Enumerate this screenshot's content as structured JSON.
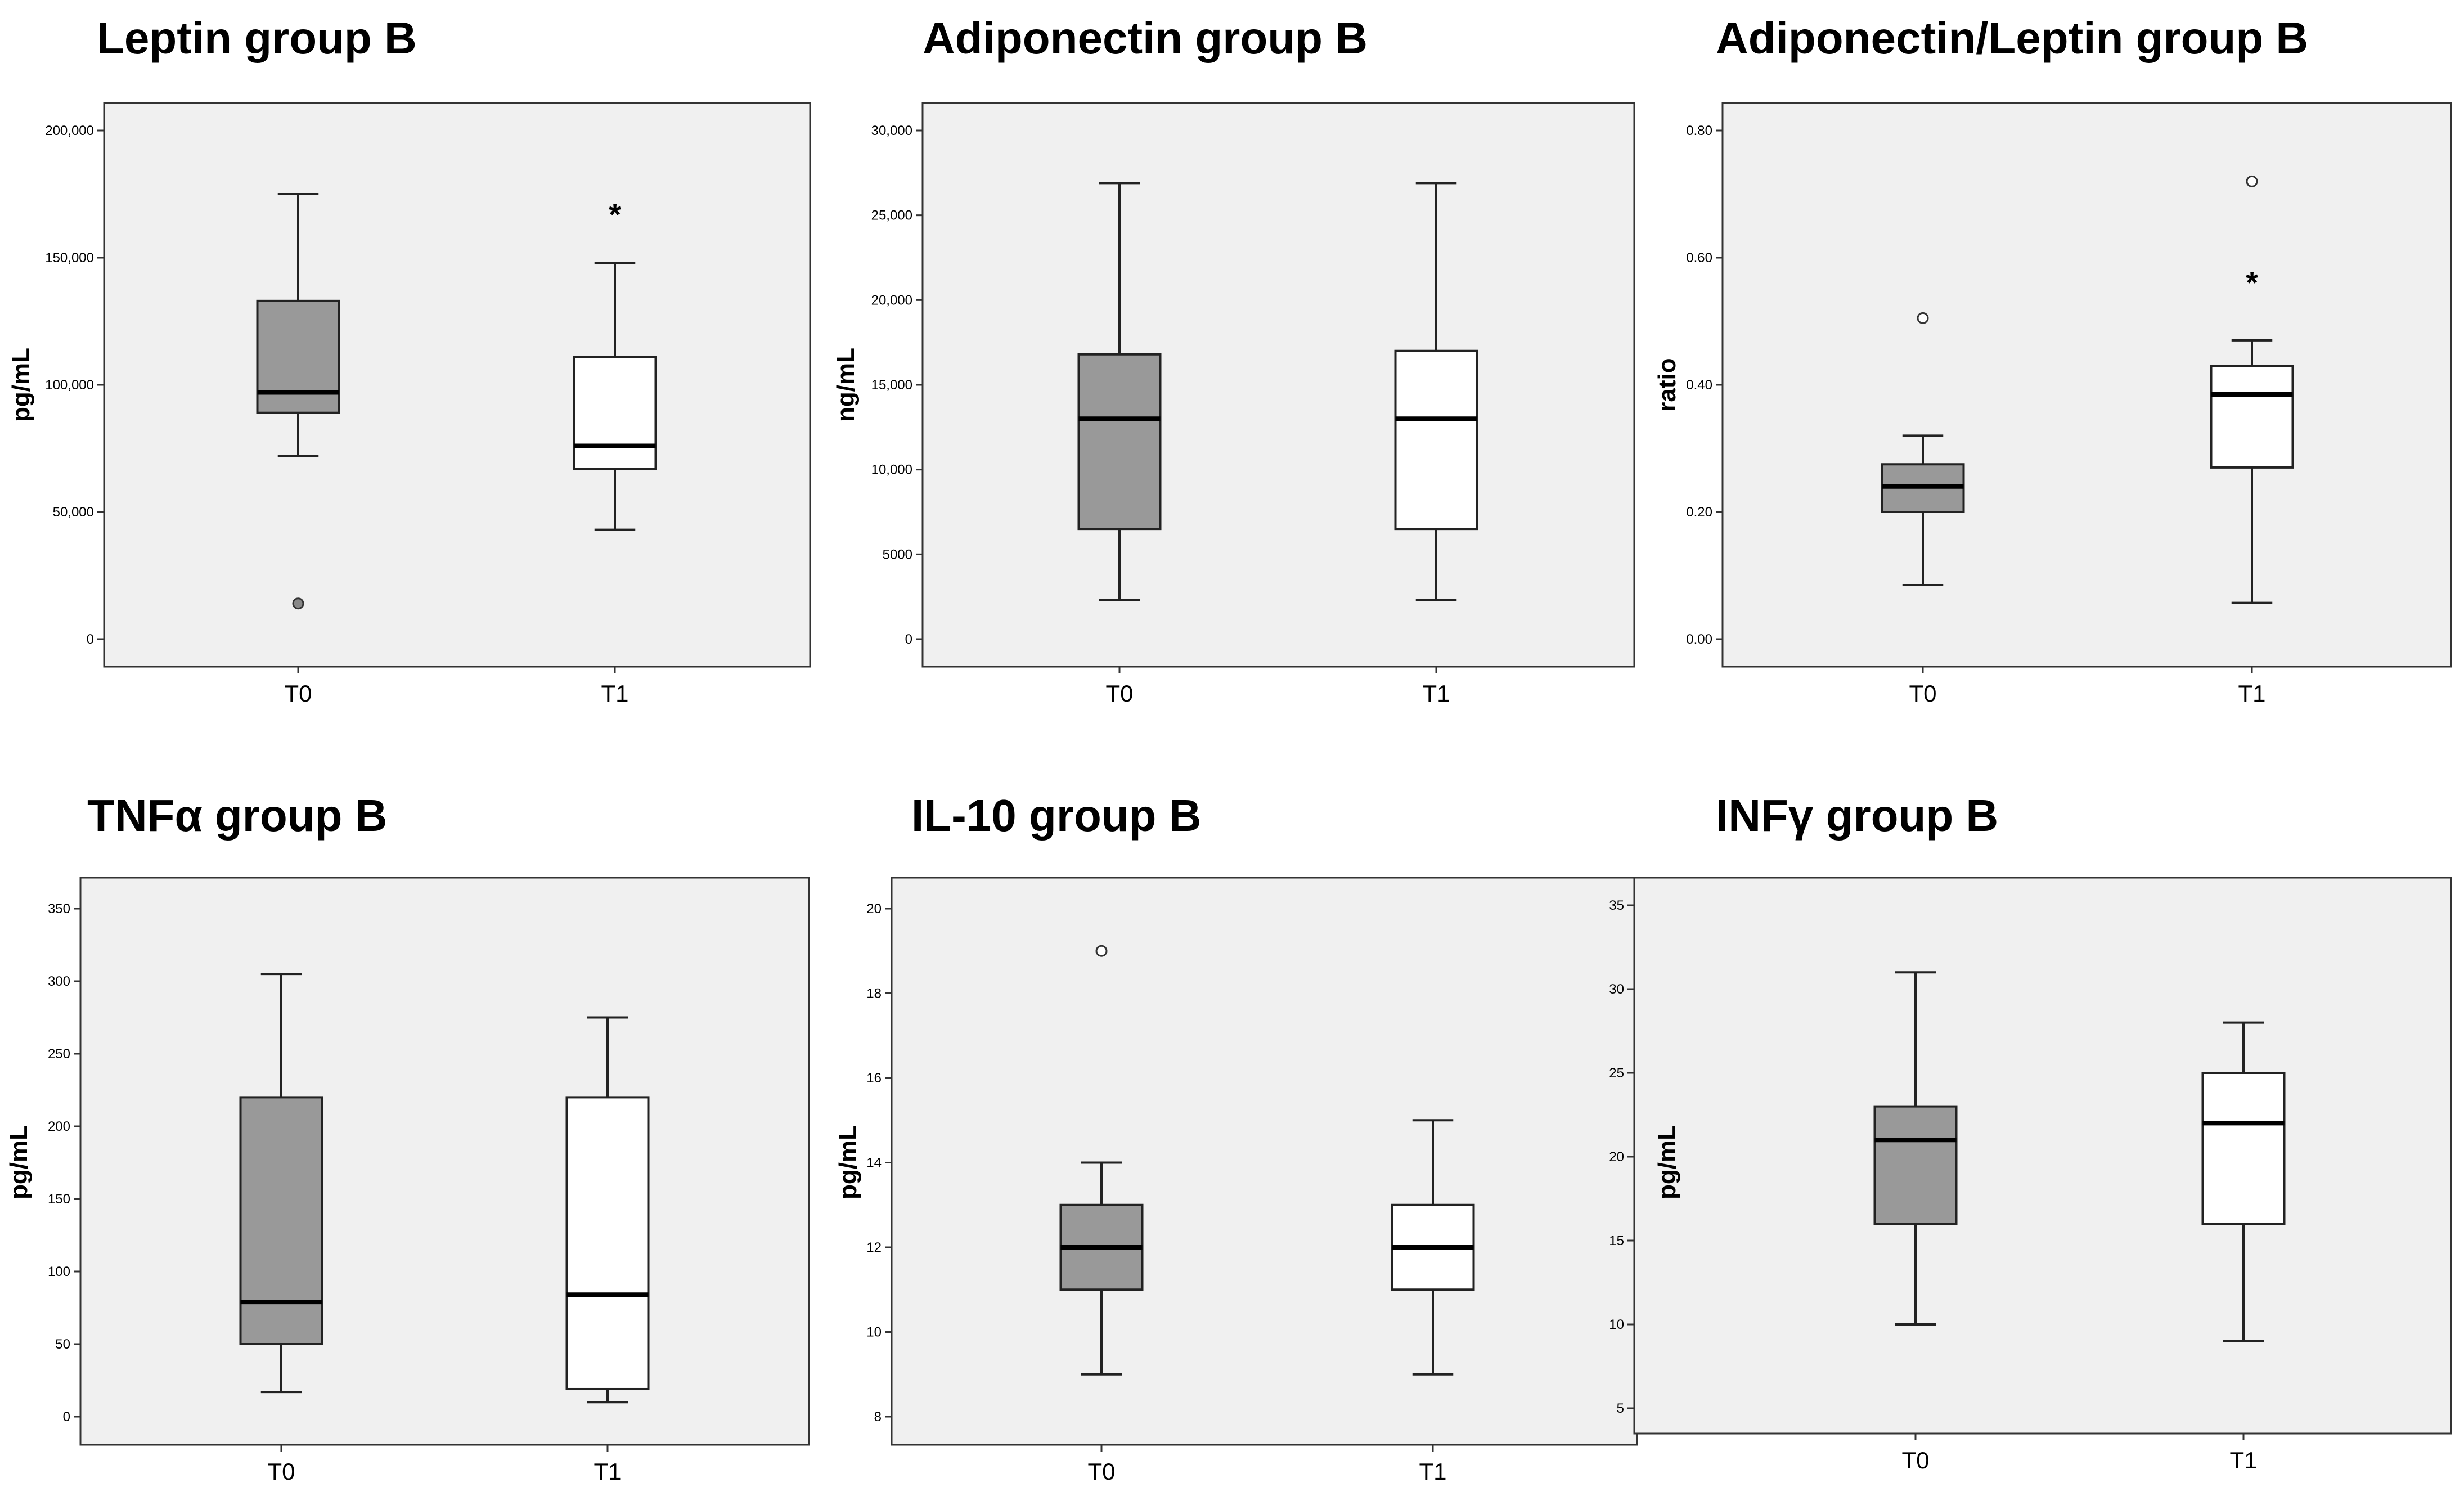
{
  "chart_data": [
    {
      "type": "boxplot",
      "title": "Leptin group B",
      "ylabel": "pg/mL",
      "ylim": [
        0,
        200000
      ],
      "yticks": [
        0,
        50000,
        100000,
        150000,
        200000
      ],
      "ytick_labels": [
        "0",
        "50,000",
        "100,000",
        "150,000",
        "200,000"
      ],
      "categories": [
        "T0",
        "T1"
      ],
      "boxes": [
        {
          "name": "T0",
          "whisker_low": 72000,
          "q1": 89000,
          "median": 97000,
          "q3": 133000,
          "whisker_high": 175000,
          "color": "#999999",
          "outliers": [
            {
              "value": 14000,
              "marker": "circle-filled"
            }
          ]
        },
        {
          "name": "T1",
          "whisker_low": 43000,
          "q1": 67000,
          "median": 76000,
          "q3": 111000,
          "whisker_high": 148000,
          "color": "#ffffff",
          "outliers": [
            {
              "value": 168000,
              "marker": "star"
            }
          ]
        }
      ]
    },
    {
      "type": "boxplot",
      "title": "Adiponectin group B",
      "ylabel": "ng/mL",
      "ylim": [
        0,
        30000
      ],
      "yticks": [
        0,
        5000,
        10000,
        15000,
        20000,
        25000,
        30000
      ],
      "ytick_labels": [
        "0",
        "5000",
        "10,000",
        "15,000",
        "20,000",
        "25,000",
        "30,000"
      ],
      "categories": [
        "T0",
        "T1"
      ],
      "boxes": [
        {
          "name": "T0",
          "whisker_low": 2300,
          "q1": 6500,
          "median": 13000,
          "q3": 16800,
          "whisker_high": 26900,
          "color": "#999999",
          "outliers": []
        },
        {
          "name": "T1",
          "whisker_low": 2300,
          "q1": 6500,
          "median": 13000,
          "q3": 17000,
          "whisker_high": 26900,
          "color": "#ffffff",
          "outliers": []
        }
      ]
    },
    {
      "type": "boxplot",
      "title": "Adiponectin/Leptin group B",
      "ylabel": "ratio",
      "ylim": [
        0,
        0.8
      ],
      "yticks": [
        0,
        0.2,
        0.4,
        0.6,
        0.8
      ],
      "ytick_labels": [
        "0.00",
        "0.20",
        "0.40",
        "0.60",
        "0.80"
      ],
      "categories": [
        "T0",
        "T1"
      ],
      "boxes": [
        {
          "name": "T0",
          "whisker_low": 0.085,
          "q1": 0.2,
          "median": 0.24,
          "q3": 0.275,
          "whisker_high": 0.32,
          "color": "#999999",
          "outliers": [
            {
              "value": 0.505,
              "marker": "circle-open"
            }
          ]
        },
        {
          "name": "T1",
          "whisker_low": 0.057,
          "q1": 0.27,
          "median": 0.385,
          "q3": 0.43,
          "whisker_high": 0.47,
          "color": "#ffffff",
          "outliers": [
            {
              "value": 0.72,
              "marker": "circle-open"
            },
            {
              "value": 0.565,
              "marker": "star"
            }
          ]
        }
      ]
    },
    {
      "type": "boxplot",
      "title": "TNFα group B",
      "ylabel": "pg/mL",
      "ylim": [
        0,
        350
      ],
      "yticks": [
        0,
        50,
        100,
        150,
        200,
        250,
        300,
        350
      ],
      "ytick_labels": [
        "0",
        "50",
        "100",
        "150",
        "200",
        "250",
        "300",
        "350"
      ],
      "categories": [
        "T0",
        "T1"
      ],
      "boxes": [
        {
          "name": "T0",
          "whisker_low": 17,
          "q1": 50,
          "median": 79,
          "q3": 220,
          "whisker_high": 305,
          "color": "#999999",
          "outliers": []
        },
        {
          "name": "T1",
          "whisker_low": 10,
          "q1": 19,
          "median": 84,
          "q3": 220,
          "whisker_high": 275,
          "color": "#ffffff",
          "outliers": []
        }
      ]
    },
    {
      "type": "boxplot",
      "title": "IL-10 group B",
      "ylabel": "pg/mL",
      "ylim": [
        8,
        20
      ],
      "yticks": [
        8,
        10,
        12,
        14,
        16,
        18,
        20
      ],
      "ytick_labels": [
        "8",
        "10",
        "12",
        "14",
        "16",
        "18",
        "20"
      ],
      "categories": [
        "T0",
        "T1"
      ],
      "boxes": [
        {
          "name": "T0",
          "whisker_low": 9,
          "q1": 11,
          "median": 12,
          "q3": 13,
          "whisker_high": 14,
          "color": "#999999",
          "outliers": [
            {
              "value": 19,
              "marker": "circle-open"
            }
          ]
        },
        {
          "name": "T1",
          "whisker_low": 9,
          "q1": 11,
          "median": 12,
          "q3": 13,
          "whisker_high": 15,
          "color": "#ffffff",
          "outliers": []
        }
      ]
    },
    {
      "type": "boxplot",
      "title": "INFγ group B",
      "ylabel": "pg/mL",
      "ylim": [
        5,
        35
      ],
      "yticks": [
        5,
        10,
        15,
        20,
        25,
        30,
        35
      ],
      "ytick_labels": [
        "5",
        "10",
        "15",
        "20",
        "25",
        "30",
        "35"
      ],
      "categories": [
        "T0",
        "T1"
      ],
      "boxes": [
        {
          "name": "T0",
          "whisker_low": 10,
          "q1": 16,
          "median": 21,
          "q3": 23,
          "whisker_high": 31,
          "color": "#999999",
          "outliers": []
        },
        {
          "name": "T1",
          "whisker_low": 9,
          "q1": 16,
          "median": 22,
          "q3": 25,
          "whisker_high": 28,
          "color": "#ffffff",
          "outliers": []
        }
      ]
    }
  ]
}
